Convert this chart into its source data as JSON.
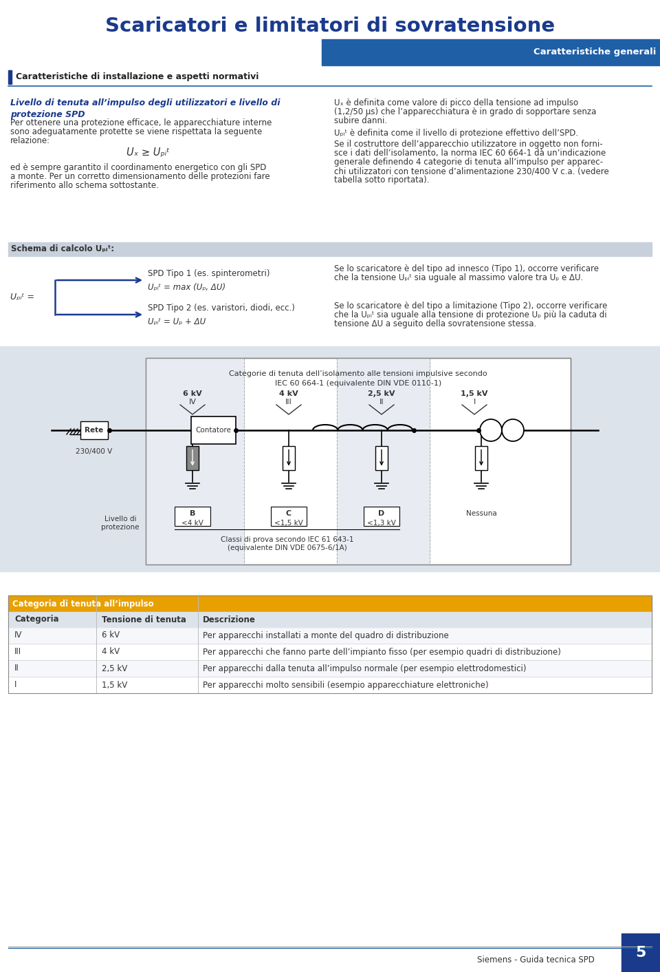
{
  "title": "Scaricatori e limitatori di sovratensione",
  "title_color": "#1a3a8c",
  "subtitle_box_color": "#1f5fa6",
  "subtitle_text": "Caratteristiche generali",
  "subtitle_text_color": "#ffffff",
  "section_header_text": "Caratteristiche di installazione e aspetti normativi",
  "section_header_color": "#222222",
  "section_bar_color": "#1a3a8c",
  "left_subtitle": "Livello di tenuta all’impulso degli utilizzatori e livello di\nprotezione SPD",
  "left_body_1": [
    "Per ottenere una protezione efficace, le apparecchiature interne",
    "sono adeguatamente protette se viene rispettata la seguente",
    "relazione:"
  ],
  "formula": "Uₓ ≥ Uₚᵢᵗ",
  "left_body_2": [
    "ed è sempre garantito il coordinamento energetico con gli SPD",
    "a monte. Per un corretto dimensionamento delle protezioni fare",
    "riferimento allo schema sottostante."
  ],
  "right_body_1": [
    "Uₓ è definita come valore di picco della tensione ad impulso",
    "(1,2/50 μs) che l’apparecchiatura è in grado di sopportare senza",
    "subire danni."
  ],
  "right_body_2": "Uₚᵢᵗ è definita come il livello di protezione effettivo dell’SPD.",
  "right_body_3": [
    "Se il costruttore dell’apparecchio utilizzatore in oggetto non forni-",
    "sce i dati dell’isolamento, la norma IEC 60 664-1 dà un’indicazione",
    "generale definendo 4 categorie di tenuta all’impulso per apparec-",
    "chi utilizzatori con tensione d’alimentazione 230/400 V c.a. (vedere",
    "tabella sotto riportata)."
  ],
  "schema_bar_color": "#c8d0dc",
  "schema_label": "Schema di calcolo Uₚᵢᵗ:",
  "upit_label": "Uₚᵢᵗ =",
  "spd1_label": "SPD Tipo 1 (es. spinterometri)",
  "spd1_formula": "Uₚᵢᵗ = max (Uₚ, ΔU)",
  "spd2_label": "SPD Tipo 2 (es. varistori, diodi, ecc.)",
  "spd2_formula": "Uₚᵢᵗ = Uₚ + ΔU",
  "schema_right_1": [
    "Se lo scaricatore è del tipo ad innesco (Tipo 1), occorre verificare",
    "che la tensione Uₚᵢᵗ sia uguale al massimo valore tra Uₚ e ΔU."
  ],
  "schema_right_2": [
    "Se lo scaricatore è del tipo a limitazione (Tipo 2), occorre verificare",
    "che la Uₚᵢᵗ sia uguale alla tensione di protezione Uₚ più la caduta di",
    "tensione ΔU a seguito della sovratensione stessa."
  ],
  "diag_bg_color": "#dde3eb",
  "diag_box_color": "#ffffff",
  "diag_box_border": "#888888",
  "diag_title": "Categorie di tenuta dell’isolamento alle tensioni impulsive secondo\nIEC 60 664-1 (equivalente DIN VDE 0110-1)",
  "cat_labels": [
    "6 kV",
    "4 kV",
    "2,5 kV",
    "1,5 kV"
  ],
  "cat_roman": [
    "IV",
    "III",
    "II",
    "I"
  ],
  "rete_label": "Rete",
  "rete_voltage": "230/400 V",
  "contatore_label": "Contatore",
  "prot_labels": [
    "B",
    "C",
    "D"
  ],
  "prot_values": [
    "<4 kV",
    "<1,5 kV",
    "<1,3 kV"
  ],
  "classi_label": "Classi di prova secondo IEC 61 643-1\n(equivalente DIN VDE 0675-6/1A)",
  "nessuna_label": "Nessuna",
  "livello_label": "Livello di\nprotezione",
  "table_header_color": "#e8a000",
  "table_col_header_color": "#dde3eb",
  "table_header_text": "Categoria di tenuta all’impulso",
  "table_cols": [
    "Categoria",
    "Tensione di tenuta",
    "Descrizione"
  ],
  "table_rows": [
    [
      "IV",
      "6 kV",
      "Per apparecchi installati a monte del quadro di distribuzione"
    ],
    [
      "III",
      "4 kV",
      "Per apparecchi che fanno parte dell’impianto fisso (per esempio quadri di distribuzione)"
    ],
    [
      "II",
      "2,5 kV",
      "Per apparecchi dalla tenuta all’impulso normale (per esempio elettrodomestici)"
    ],
    [
      "I",
      "1,5 kV",
      "Per apparecchi molto sensibili (esempio apparecchiature elettroniche)"
    ]
  ],
  "footer_text": "Siemens - Guida tecnica SPD",
  "page_num": "5",
  "page_box_color": "#1a3a8c",
  "bg_color": "#ffffff",
  "text_color": "#333333",
  "divider_color": "#1f5fa6"
}
